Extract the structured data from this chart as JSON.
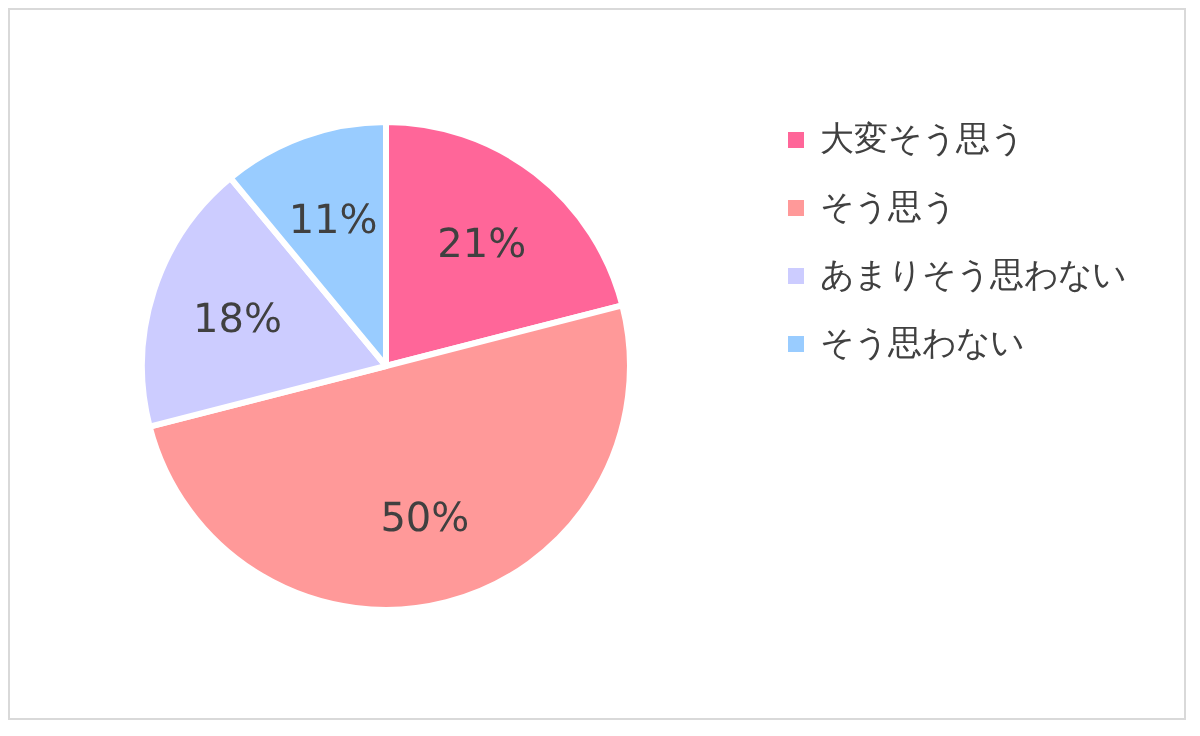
{
  "chart_data": {
    "type": "pie",
    "categories": [
      "大変そう思う",
      "そう思う",
      "あまりそう思わない",
      "そう思わない"
    ],
    "values": [
      21,
      50,
      18,
      11
    ],
    "colors": [
      "#ff6699",
      "#ff9999",
      "#ccccff",
      "#99ccff"
    ],
    "value_labels": [
      "21%",
      "50%",
      "18%",
      "11%"
    ],
    "legend": "right"
  }
}
